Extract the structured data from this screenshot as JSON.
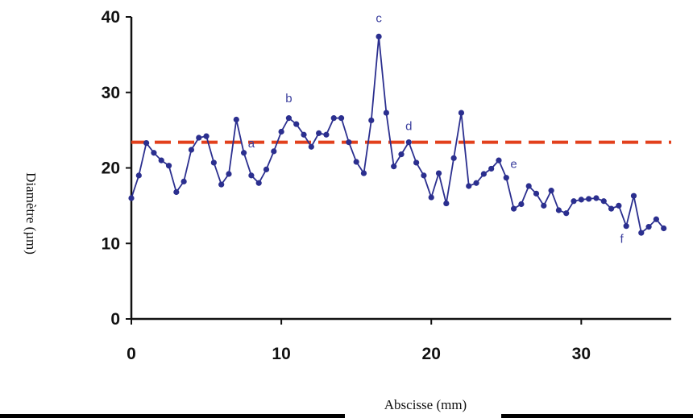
{
  "chart_data": {
    "type": "line",
    "xlabel": "Abscisse (mm)",
    "ylabel": "Diamètre (µm)",
    "xlim": [
      0,
      36
    ],
    "ylim": [
      0,
      40
    ],
    "x_ticks": [
      0,
      10,
      20,
      30
    ],
    "y_ticks": [
      0,
      10,
      20,
      30,
      40
    ],
    "grid": false,
    "series": [
      {
        "color": "#2b2f8f",
        "marker": "circle",
        "points": [
          [
            0,
            16.0
          ],
          [
            0.5,
            19.0
          ],
          [
            1.0,
            23.3
          ],
          [
            1.5,
            22.0
          ],
          [
            2.0,
            21.0
          ],
          [
            2.5,
            20.3
          ],
          [
            3.0,
            16.8
          ],
          [
            3.5,
            18.2
          ],
          [
            4.0,
            22.4
          ],
          [
            4.5,
            24.0
          ],
          [
            5.0,
            24.2
          ],
          [
            5.5,
            20.7
          ],
          [
            6.0,
            17.8
          ],
          [
            6.5,
            19.2
          ],
          [
            7.0,
            26.4
          ],
          [
            7.5,
            22.0
          ],
          [
            8.0,
            19.0
          ],
          [
            8.5,
            18.0
          ],
          [
            9.0,
            19.8
          ],
          [
            9.5,
            22.2
          ],
          [
            10.0,
            24.8
          ],
          [
            10.5,
            26.6
          ],
          [
            11.0,
            25.8
          ],
          [
            11.5,
            24.4
          ],
          [
            12.0,
            22.8
          ],
          [
            12.5,
            24.6
          ],
          [
            13.0,
            24.4
          ],
          [
            13.5,
            26.6
          ],
          [
            14.0,
            26.6
          ],
          [
            14.5,
            23.4
          ],
          [
            15.0,
            20.8
          ],
          [
            15.5,
            19.3
          ],
          [
            16.0,
            26.3
          ],
          [
            16.5,
            37.4
          ],
          [
            17.0,
            27.3
          ],
          [
            17.5,
            20.2
          ],
          [
            18.0,
            21.8
          ],
          [
            18.5,
            23.4
          ],
          [
            19.0,
            20.7
          ],
          [
            19.5,
            19.0
          ],
          [
            20.0,
            16.1
          ],
          [
            20.5,
            19.3
          ],
          [
            21.0,
            15.3
          ],
          [
            21.5,
            21.3
          ],
          [
            22.0,
            27.3
          ],
          [
            22.5,
            17.6
          ],
          [
            23.0,
            18.0
          ],
          [
            23.5,
            19.2
          ],
          [
            24.0,
            19.9
          ],
          [
            24.5,
            21.0
          ],
          [
            25.0,
            18.7
          ],
          [
            25.5,
            14.6
          ],
          [
            26.0,
            15.2
          ],
          [
            26.5,
            17.6
          ],
          [
            27.0,
            16.6
          ],
          [
            27.5,
            15.0
          ],
          [
            28.0,
            17.0
          ],
          [
            28.5,
            14.4
          ],
          [
            29.0,
            14.0
          ],
          [
            29.5,
            15.6
          ],
          [
            30.0,
            15.8
          ],
          [
            30.5,
            15.9
          ],
          [
            31.0,
            16.0
          ],
          [
            31.5,
            15.6
          ],
          [
            32.0,
            14.6
          ],
          [
            32.5,
            15.0
          ],
          [
            33.0,
            12.3
          ],
          [
            33.5,
            16.3
          ],
          [
            34.0,
            11.4
          ],
          [
            34.5,
            12.2
          ],
          [
            35.0,
            13.2
          ],
          [
            35.5,
            12.0
          ]
        ]
      }
    ],
    "reference_line": {
      "y": 23.4,
      "color": "#e2401c",
      "style": "dashed"
    },
    "annotations": [
      {
        "text": "a",
        "x": 8.0,
        "y": 22.7
      },
      {
        "text": "b",
        "x": 10.5,
        "y": 28.7
      },
      {
        "text": "c",
        "x": 16.5,
        "y": 39.3
      },
      {
        "text": "d",
        "x": 18.5,
        "y": 25.0
      },
      {
        "text": "e",
        "x": 25.5,
        "y": 20.0
      },
      {
        "text": "f",
        "x": 32.7,
        "y": 10.1
      }
    ]
  }
}
